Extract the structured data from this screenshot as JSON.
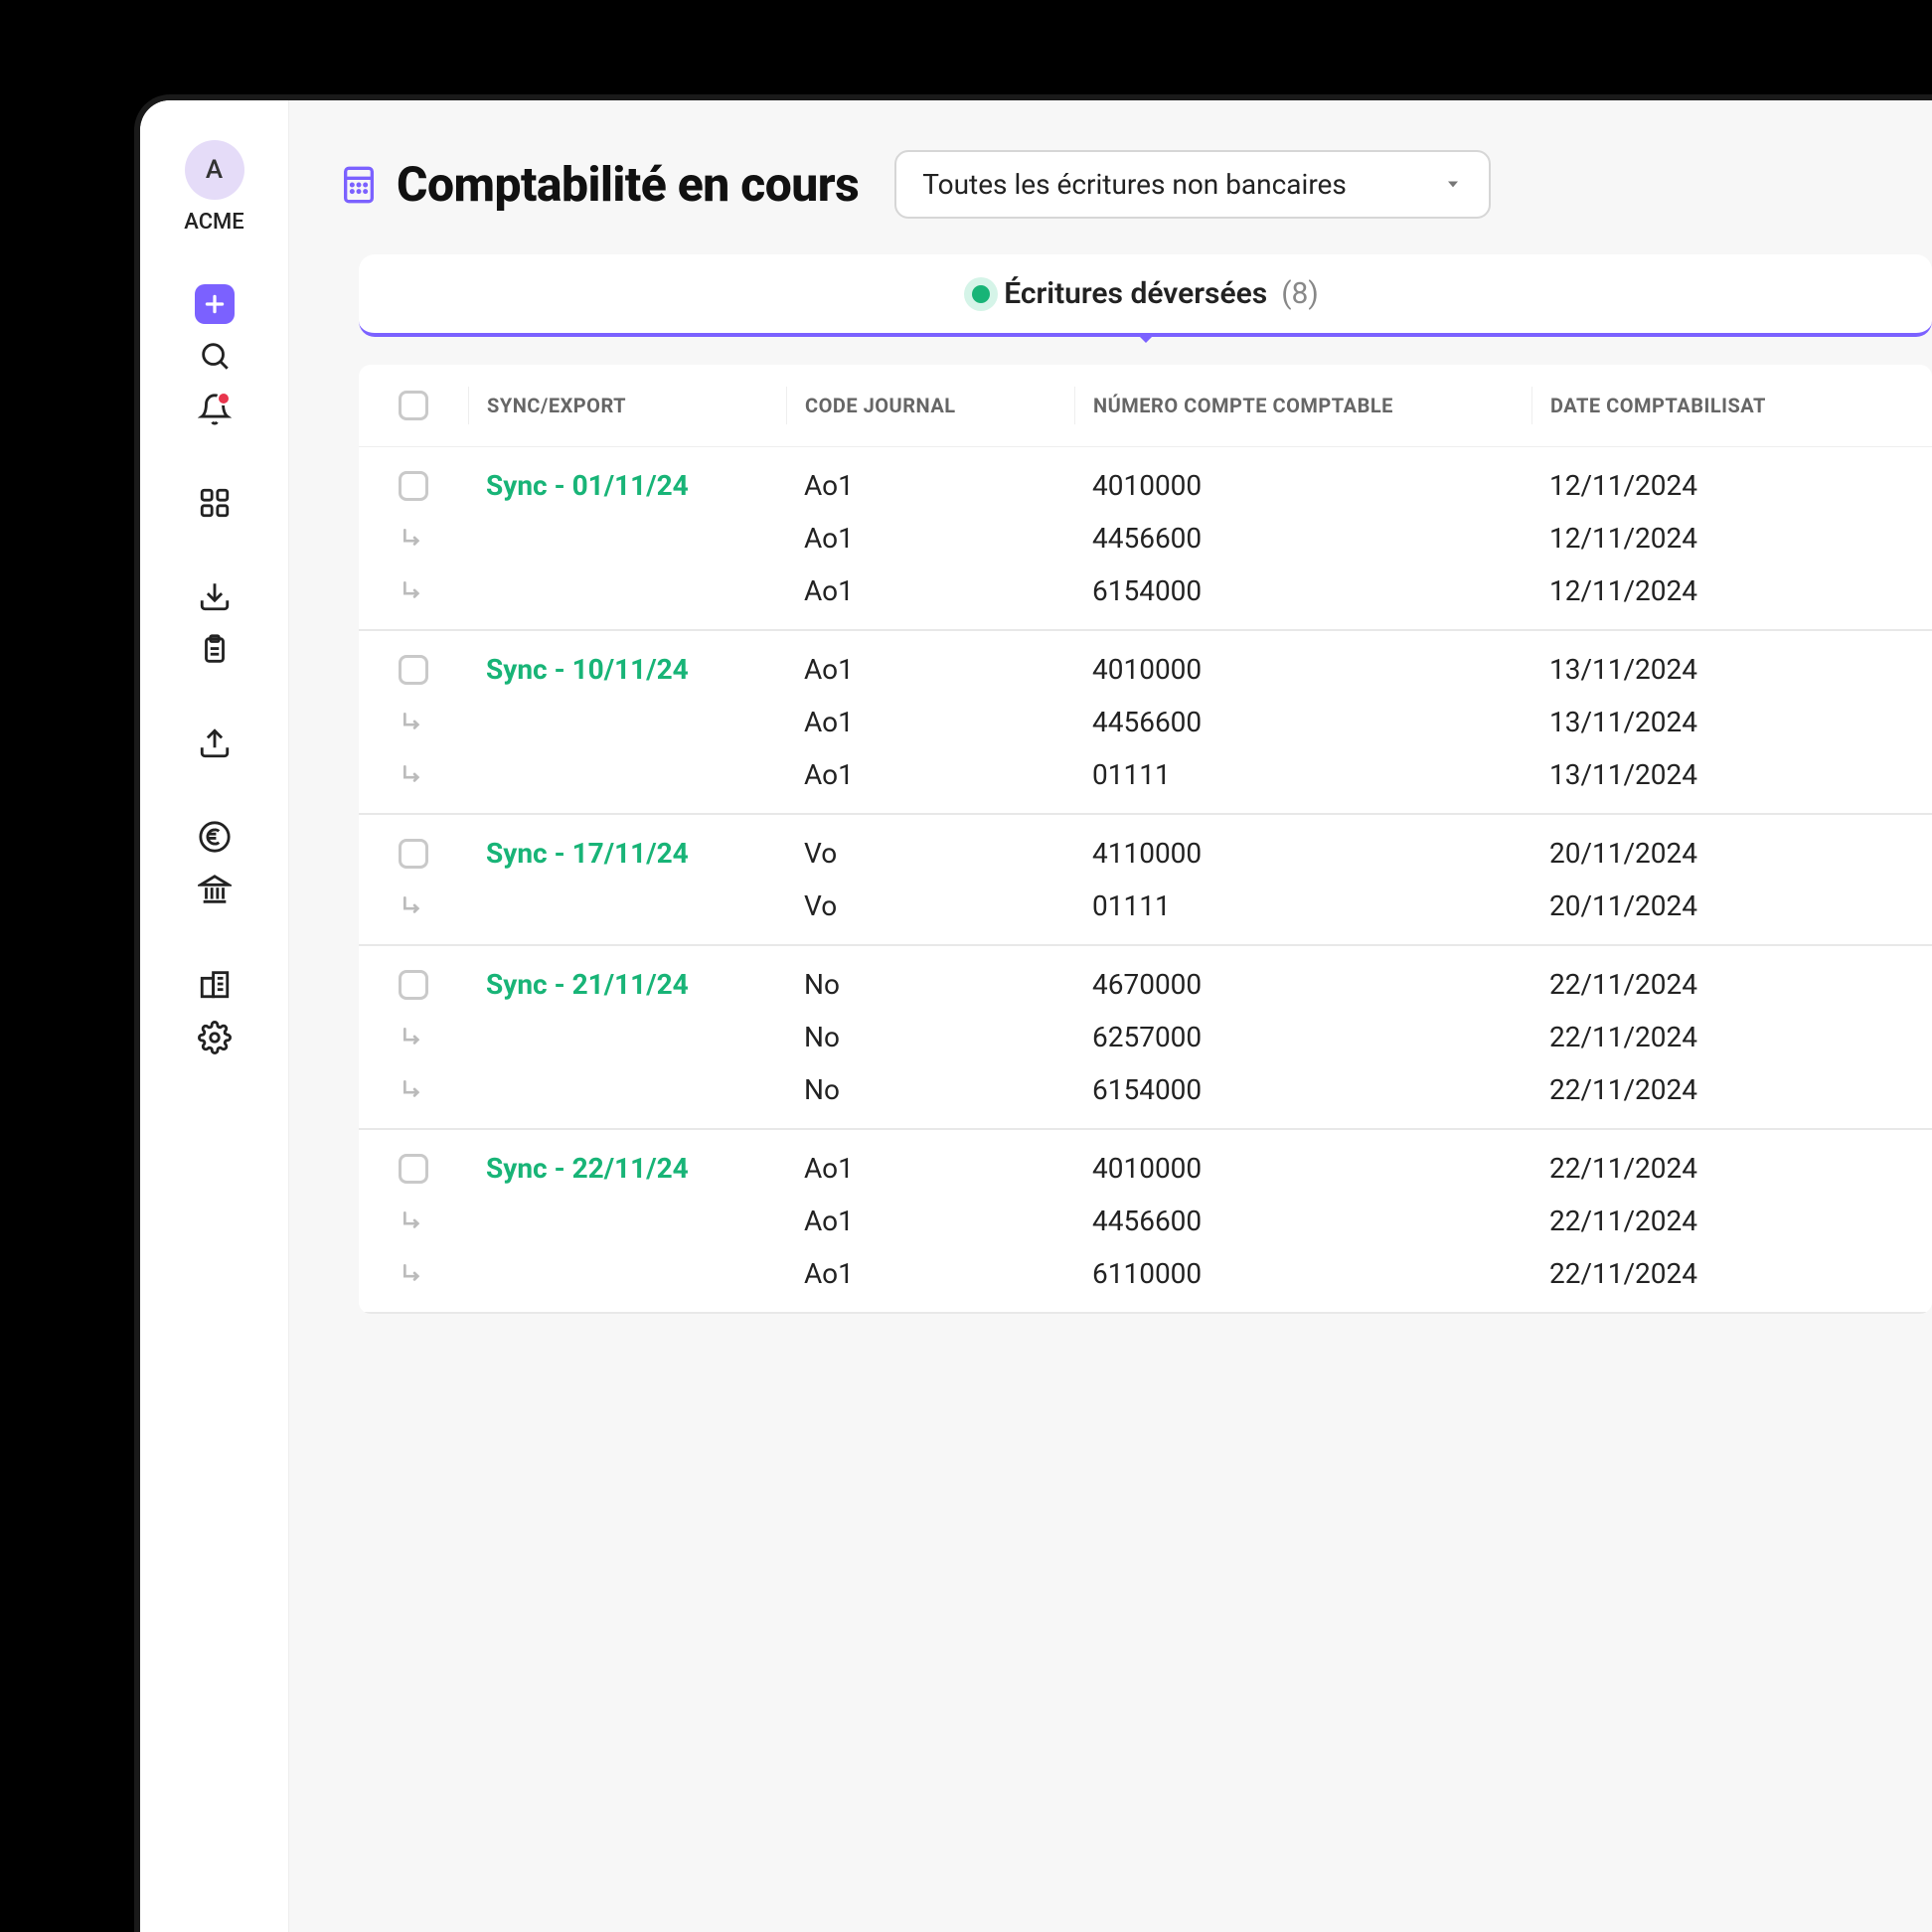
{
  "company": {
    "initial": "A",
    "name": "ACME"
  },
  "page": {
    "title": "Comptabilité en cours"
  },
  "filter": {
    "selected": "Toutes les écritures non bancaires"
  },
  "tab": {
    "label": "Écritures déversées",
    "count": "(8)"
  },
  "columns": {
    "sync": "SYNC/EXPORT",
    "journal": "CODE JOURNAL",
    "account": "NÚMERO COMPTE COMPTABLE",
    "date": "DATE COMPTABILISAT"
  },
  "groups": [
    {
      "sync": "Sync - 01/11/24",
      "rows": [
        {
          "journal": "Ao1",
          "account": "4010000",
          "date": "12/11/2024"
        },
        {
          "journal": "Ao1",
          "account": "4456600",
          "date": "12/11/2024"
        },
        {
          "journal": "Ao1",
          "account": "6154000",
          "date": "12/11/2024"
        }
      ]
    },
    {
      "sync": "Sync - 10/11/24",
      "rows": [
        {
          "journal": "Ao1",
          "account": "4010000",
          "date": "13/11/2024"
        },
        {
          "journal": "Ao1",
          "account": "4456600",
          "date": "13/11/2024"
        },
        {
          "journal": "Ao1",
          "account": "01111",
          "date": "13/11/2024"
        }
      ]
    },
    {
      "sync": "Sync - 17/11/24",
      "rows": [
        {
          "journal": "Vo",
          "account": "4110000",
          "date": "20/11/2024"
        },
        {
          "journal": "Vo",
          "account": "01111",
          "date": "20/11/2024"
        }
      ]
    },
    {
      "sync": "Sync - 21/11/24",
      "rows": [
        {
          "journal": "No",
          "account": "4670000",
          "date": "22/11/2024"
        },
        {
          "journal": "No",
          "account": "6257000",
          "date": "22/11/2024"
        },
        {
          "journal": "No",
          "account": "6154000",
          "date": "22/11/2024"
        }
      ]
    },
    {
      "sync": "Sync - 22/11/24",
      "rows": [
        {
          "journal": "Ao1",
          "account": "4010000",
          "date": "22/11/2024"
        },
        {
          "journal": "Ao1",
          "account": "4456600",
          "date": "22/11/2024"
        },
        {
          "journal": "Ao1",
          "account": "6110000",
          "date": "22/11/2024"
        }
      ]
    }
  ]
}
